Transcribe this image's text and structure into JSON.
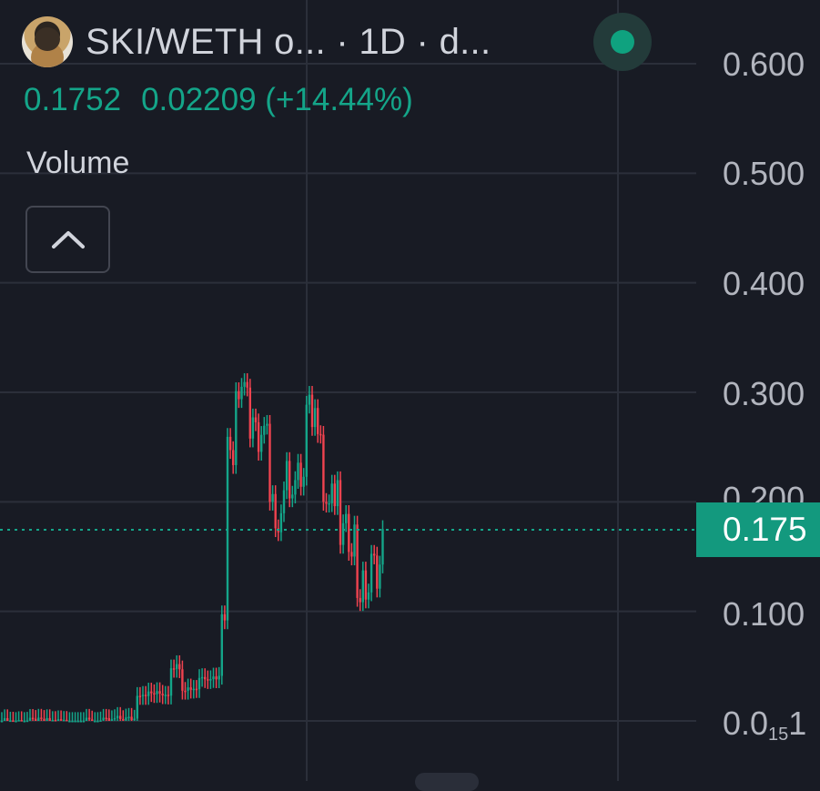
{
  "header": {
    "title": "SKI/WETH o...  · 1D · d...",
    "last_price": "0.1752",
    "change": "0.02209 (+14.44%)"
  },
  "pane": {
    "volume_label": "Volume"
  },
  "axis": {
    "labels": [
      "0.600",
      "0.500",
      "0.400",
      "0.300",
      "0.200",
      "0.100"
    ],
    "bottom_label_prefix": "0.0",
    "bottom_label_sub": "15",
    "bottom_label_suffix": "1",
    "current_price_tag": "0.175"
  },
  "colors": {
    "background": "#181b24",
    "up": "#14a589",
    "down": "#f0434f",
    "grid": "#2b2f3a",
    "price_tag": "#13997e"
  },
  "icons": {
    "avatar": "token-avatar",
    "live": "live-status-dot",
    "collapse": "chevron-up-icon"
  },
  "chart_data": {
    "type": "candlestick",
    "interval": "1D",
    "last_close": 0.1752,
    "ylim": [
      0.0,
      0.6
    ],
    "segments": [
      {
        "from": 0,
        "to": 40,
        "price": 0.0
      },
      {
        "from": 40,
        "to": 48,
        "price": 0.002
      },
      {
        "from": 48,
        "to": 60,
        "price": 0.025
      },
      {
        "from": 60,
        "to": 64,
        "price": 0.05
      },
      {
        "from": 64,
        "to": 70,
        "price": 0.03
      },
      {
        "from": 70,
        "to": 78,
        "price": 0.04
      },
      {
        "from": 78,
        "to": 80,
        "price": 0.11
      },
      {
        "from": 80,
        "to": 83,
        "price": 0.25
      },
      {
        "from": 83,
        "to": 88,
        "price": 0.31
      },
      {
        "from": 88,
        "to": 95,
        "price": 0.26
      },
      {
        "from": 95,
        "to": 100,
        "price": 0.19
      },
      {
        "from": 100,
        "to": 108,
        "price": 0.22
      },
      {
        "from": 108,
        "to": 114,
        "price": 0.28
      },
      {
        "from": 114,
        "to": 120,
        "price": 0.2
      },
      {
        "from": 120,
        "to": 126,
        "price": 0.17
      },
      {
        "from": 126,
        "to": 131,
        "price": 0.12
      },
      {
        "from": 131,
        "to": 136,
        "price": 0.14
      }
    ]
  }
}
